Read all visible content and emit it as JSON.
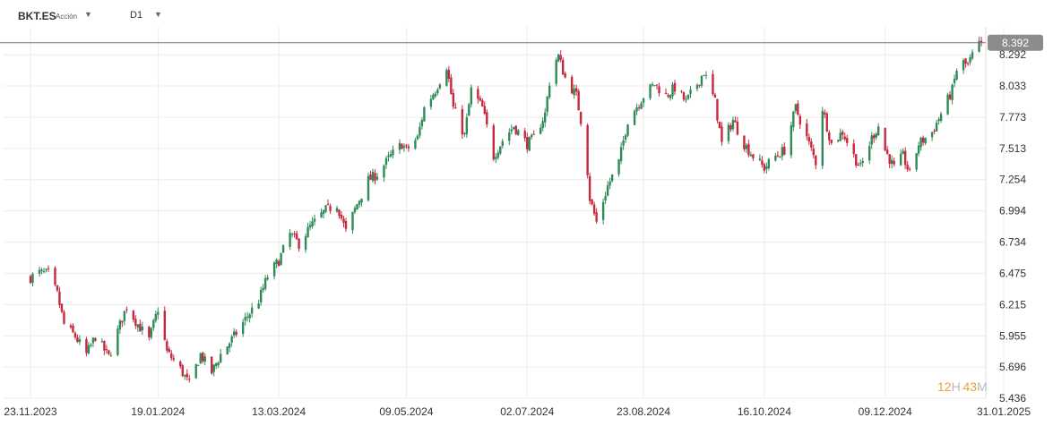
{
  "toolbar": {
    "symbol": "BKT.ES",
    "symbol_type": "Acción",
    "timeframe": "D1"
  },
  "countdown": {
    "hours": "12",
    "hours_unit": "H",
    "minutes": "43",
    "minutes_unit": "M"
  },
  "colors": {
    "up": "#2e8b57",
    "down": "#c8283c",
    "grid": "#ececec",
    "price_line": "#777777",
    "price_tag": "#8c8c8c"
  },
  "chart_data": {
    "type": "candlestick",
    "series_step_days": 1,
    "ylim": [
      5.436,
      8.45
    ],
    "y_ticks": [
      "8.292",
      "8.033",
      "7.773",
      "7.513",
      "7.254",
      "6.994",
      "6.734",
      "6.475",
      "6.215",
      "5.955",
      "5.696",
      "5.436"
    ],
    "x_ticks": [
      "23.11.2023",
      "19.01.2024",
      "13.03.2024",
      "09.05.2024",
      "02.07.2024",
      "23.08.2024",
      "16.10.2024",
      "09.12.2024",
      "31.01.2025"
    ],
    "last_price": "8.392",
    "close_path": [
      [
        "23.11.2023",
        6.44
      ],
      [
        "27.11.2023",
        6.48
      ],
      [
        "01.12.2023",
        6.47
      ],
      [
        "05.12.2023",
        6.3
      ],
      [
        "08.12.2023",
        6.05
      ],
      [
        "13.12.2023",
        5.95
      ],
      [
        "18.12.2023",
        5.8
      ],
      [
        "22.12.2023",
        5.95
      ],
      [
        "28.12.2023",
        5.78
      ],
      [
        "03.01.2024",
        6.1
      ],
      [
        "05.01.2024",
        6.2
      ],
      [
        "10.01.2024",
        6.05
      ],
      [
        "15.01.2024",
        5.92
      ],
      [
        "19.01.2024",
        6.18
      ],
      [
        "23.01.2024",
        5.82
      ],
      [
        "29.01.2024",
        5.68
      ],
      [
        "02.02.2024",
        5.55
      ],
      [
        "07.02.2024",
        5.8
      ],
      [
        "12.02.2024",
        5.65
      ],
      [
        "16.02.2024",
        5.8
      ],
      [
        "22.02.2024",
        5.95
      ],
      [
        "28.02.2024",
        6.12
      ],
      [
        "04.03.2024",
        6.25
      ],
      [
        "08.03.2024",
        6.45
      ],
      [
        "13.03.2024",
        6.58
      ],
      [
        "18.03.2024",
        6.8
      ],
      [
        "22.03.2024",
        6.72
      ],
      [
        "27.03.2024",
        6.86
      ],
      [
        "03.04.2024",
        7.0
      ],
      [
        "08.04.2024",
        7.05
      ],
      [
        "12.04.2024",
        6.82
      ],
      [
        "17.04.2024",
        7.05
      ],
      [
        "22.04.2024",
        7.25
      ],
      [
        "26.04.2024",
        7.3
      ],
      [
        "02.05.2024",
        7.45
      ],
      [
        "07.05.2024",
        7.55
      ],
      [
        "09.05.2024",
        7.5
      ],
      [
        "14.05.2024",
        7.6
      ],
      [
        "17.05.2024",
        7.85
      ],
      [
        "22.05.2024",
        8.0
      ],
      [
        "27.05.2024",
        8.2
      ],
      [
        "30.05.2024",
        7.85
      ],
      [
        "04.06.2024",
        7.62
      ],
      [
        "07.06.2024",
        8.0
      ],
      [
        "12.06.2024",
        7.85
      ],
      [
        "17.06.2024",
        7.45
      ],
      [
        "21.06.2024",
        7.58
      ],
      [
        "26.06.2024",
        7.7
      ],
      [
        "02.07.2024",
        7.55
      ],
      [
        "05.07.2024",
        7.6
      ],
      [
        "10.07.2024",
        7.8
      ],
      [
        "13.07.2024",
        8.2
      ],
      [
        "16.07.2024",
        8.28
      ],
      [
        "19.07.2024",
        8.1
      ],
      [
        "24.07.2024",
        7.95
      ],
      [
        "28.07.2024",
        7.55
      ],
      [
        "30.07.2024",
        7.1
      ],
      [
        "02.08.2024",
        6.9
      ],
      [
        "07.08.2024",
        7.2
      ],
      [
        "12.08.2024",
        7.4
      ],
      [
        "16.08.2024",
        7.75
      ],
      [
        "23.08.2024",
        7.95
      ],
      [
        "28.08.2024",
        8.05
      ],
      [
        "02.09.2024",
        7.95
      ],
      [
        "06.09.2024",
        8.02
      ],
      [
        "11.09.2024",
        7.9
      ],
      [
        "16.09.2024",
        8.05
      ],
      [
        "19.09.2024",
        8.15
      ],
      [
        "24.09.2024",
        7.9
      ],
      [
        "27.09.2024",
        7.55
      ],
      [
        "02.10.2024",
        7.75
      ],
      [
        "07.10.2024",
        7.55
      ],
      [
        "11.10.2024",
        7.45
      ],
      [
        "16.10.2024",
        7.35
      ],
      [
        "21.10.2024",
        7.45
      ],
      [
        "25.10.2024",
        7.5
      ],
      [
        "30.10.2024",
        7.85
      ],
      [
        "04.11.2024",
        7.6
      ],
      [
        "08.11.2024",
        7.4
      ],
      [
        "11.11.2024",
        7.85
      ],
      [
        "15.11.2024",
        7.55
      ],
      [
        "20.11.2024",
        7.65
      ],
      [
        "25.11.2024",
        7.45
      ],
      [
        "28.11.2024",
        7.35
      ],
      [
        "03.12.2024",
        7.6
      ],
      [
        "06.12.2024",
        7.7
      ],
      [
        "09.12.2024",
        7.5
      ],
      [
        "13.12.2024",
        7.35
      ],
      [
        "17.12.2024",
        7.45
      ],
      [
        "20.12.2024",
        7.3
      ],
      [
        "24.12.2024",
        7.55
      ],
      [
        "30.12.2024",
        7.65
      ],
      [
        "03.01.2025",
        7.8
      ],
      [
        "08.01.2025",
        8.0
      ],
      [
        "11.01.2025",
        8.25
      ],
      [
        "15.01.2025",
        8.2
      ],
      [
        "18.01.2025",
        8.33
      ],
      [
        "21.01.2025",
        8.392
      ]
    ]
  }
}
